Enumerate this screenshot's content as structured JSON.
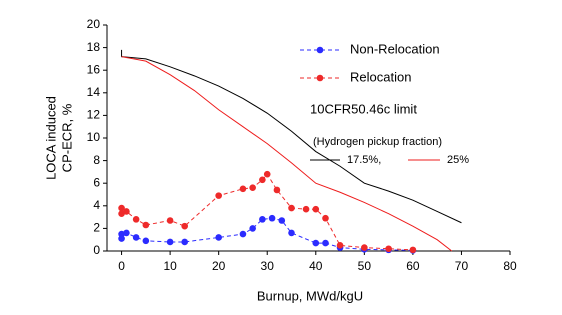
{
  "chart_data": {
    "type": "line",
    "x_label": "Burnup, MWd/kgU",
    "y_label": [
      "LOCA induced",
      "CP-ECR, %"
    ],
    "annotations": [
      "10CFR50.46c limit",
      "(Hydrogen pickup fraction)"
    ],
    "xlim": [
      -3,
      80
    ],
    "xticks": [
      0,
      10,
      20,
      30,
      40,
      50,
      60,
      70,
      80
    ],
    "ylim": [
      0,
      20
    ],
    "yticks": [
      0,
      2,
      4,
      6,
      8,
      10,
      12,
      14,
      16,
      18,
      20
    ],
    "grid": false,
    "series": [
      {
        "name": "Non-Relocation",
        "color": "#2b2bff",
        "style": "dashed-markers",
        "x": [
          0,
          0,
          1,
          3,
          5,
          10,
          13,
          20,
          25,
          27,
          29,
          31,
          33,
          35,
          40,
          42,
          45,
          50,
          55,
          60
        ],
        "values": [
          1.1,
          1.5,
          1.6,
          1.2,
          0.9,
          0.8,
          0.8,
          1.2,
          1.5,
          2,
          2.8,
          2.9,
          2.7,
          1.6,
          0.7,
          0.7,
          0.3,
          0.15,
          0.1,
          0.05
        ]
      },
      {
        "name": "Relocation",
        "color": "#ee2a2a",
        "style": "dashed-markers",
        "x": [
          0,
          0,
          1,
          3,
          5,
          10,
          13,
          20,
          25,
          27,
          29,
          30,
          32,
          35,
          38,
          40,
          42,
          45,
          50,
          55,
          60
        ],
        "values": [
          3.8,
          3.3,
          3.5,
          2.8,
          2.3,
          2.7,
          2.2,
          4.9,
          5.5,
          5.6,
          6.3,
          6.8,
          5.4,
          3.8,
          3.7,
          3.7,
          2.9,
          0.5,
          0.3,
          0.2,
          0.1
        ]
      },
      {
        "name": "17.5%,",
        "color": "#000000",
        "style": "solid",
        "x": [
          0,
          0,
          5,
          10,
          15,
          20,
          25,
          30,
          35,
          40,
          45,
          50,
          55,
          60,
          65,
          70
        ],
        "values": [
          17.8,
          17.2,
          17,
          16.3,
          15.5,
          14.6,
          13.5,
          12.2,
          10.6,
          8.8,
          7.5,
          6,
          5.3,
          4.5,
          3.5,
          2.5
        ]
      },
      {
        "name": "25%",
        "color": "#ee1c1c",
        "style": "solid",
        "x": [
          0,
          5,
          10,
          15,
          20,
          25,
          30,
          35,
          40,
          45,
          50,
          55,
          60,
          65,
          68
        ],
        "values": [
          17.2,
          16.8,
          15.6,
          14.2,
          12.5,
          11,
          9.5,
          7.8,
          6,
          5.2,
          4.3,
          3.3,
          2.2,
          1,
          0
        ]
      }
    ]
  }
}
